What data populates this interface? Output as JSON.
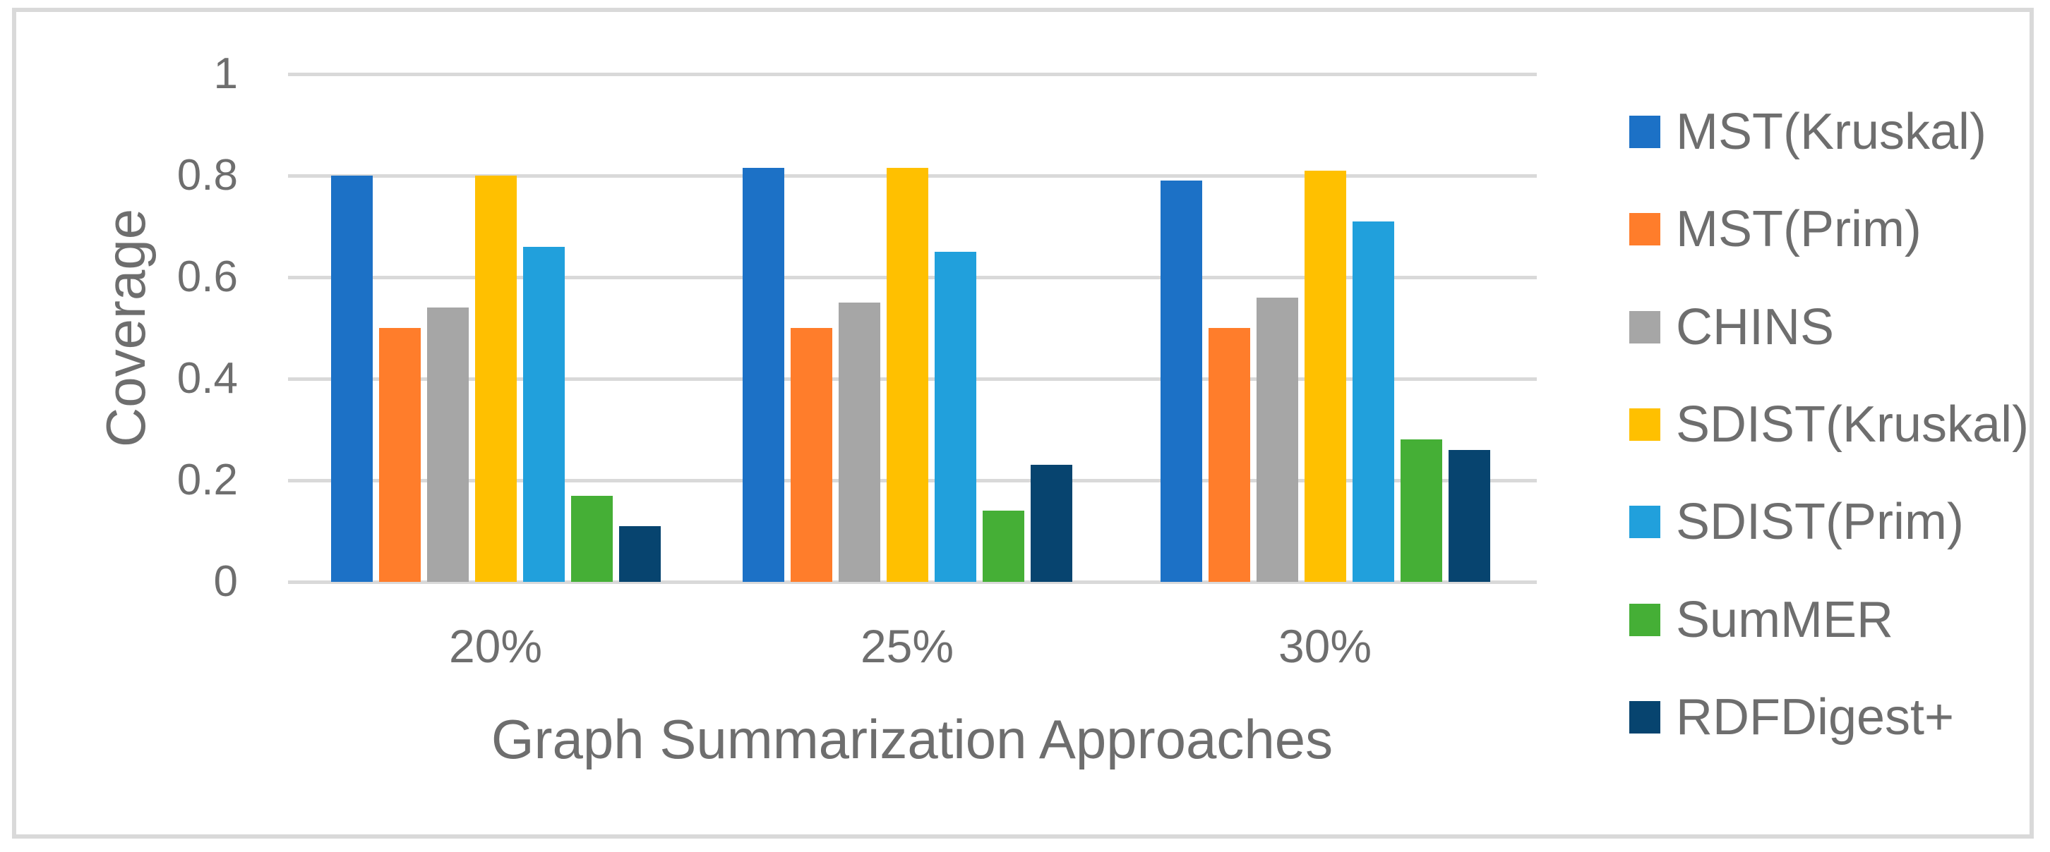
{
  "chart_data": {
    "type": "bar",
    "title": "",
    "xlabel": "Graph Summarization Approaches",
    "ylabel": "Coverage",
    "categories": [
      "20%",
      "25%",
      "30%"
    ],
    "series": [
      {
        "name": "MST(Kruskal)",
        "color": "#1c71c6",
        "values": [
          0.8,
          0.815,
          0.79
        ]
      },
      {
        "name": "MST(Prim)",
        "color": "#ff7d2b",
        "values": [
          0.5,
          0.5,
          0.5
        ]
      },
      {
        "name": "CHINS",
        "color": "#a6a6a6",
        "values": [
          0.54,
          0.55,
          0.56
        ]
      },
      {
        "name": "SDIST(Kruskal)",
        "color": "#ffc000",
        "values": [
          0.8,
          0.815,
          0.81
        ]
      },
      {
        "name": "SDIST(Prim)",
        "color": "#21a0dc",
        "values": [
          0.66,
          0.65,
          0.71
        ]
      },
      {
        "name": "SumMER",
        "color": "#45af36",
        "values": [
          0.17,
          0.14,
          0.28
        ]
      },
      {
        "name": "RDFDigest+",
        "color": "#07446f",
        "values": [
          0.11,
          0.23,
          0.26
        ]
      }
    ],
    "y_ticks": [
      {
        "label": "0",
        "value": 0.0
      },
      {
        "label": "0.2",
        "value": 0.2
      },
      {
        "label": "0.4",
        "value": 0.4
      },
      {
        "label": "0.6",
        "value": 0.6
      },
      {
        "label": "0.8",
        "value": 0.8
      },
      {
        "label": "1",
        "value": 1.0
      }
    ],
    "ylim": [
      0,
      1
    ],
    "grid": true,
    "legend_position": "right"
  },
  "colors": {
    "grid": "#d9d9d9",
    "frame": "#d9d9d9",
    "text": "#6e6e6e",
    "background": "#ffffff"
  }
}
